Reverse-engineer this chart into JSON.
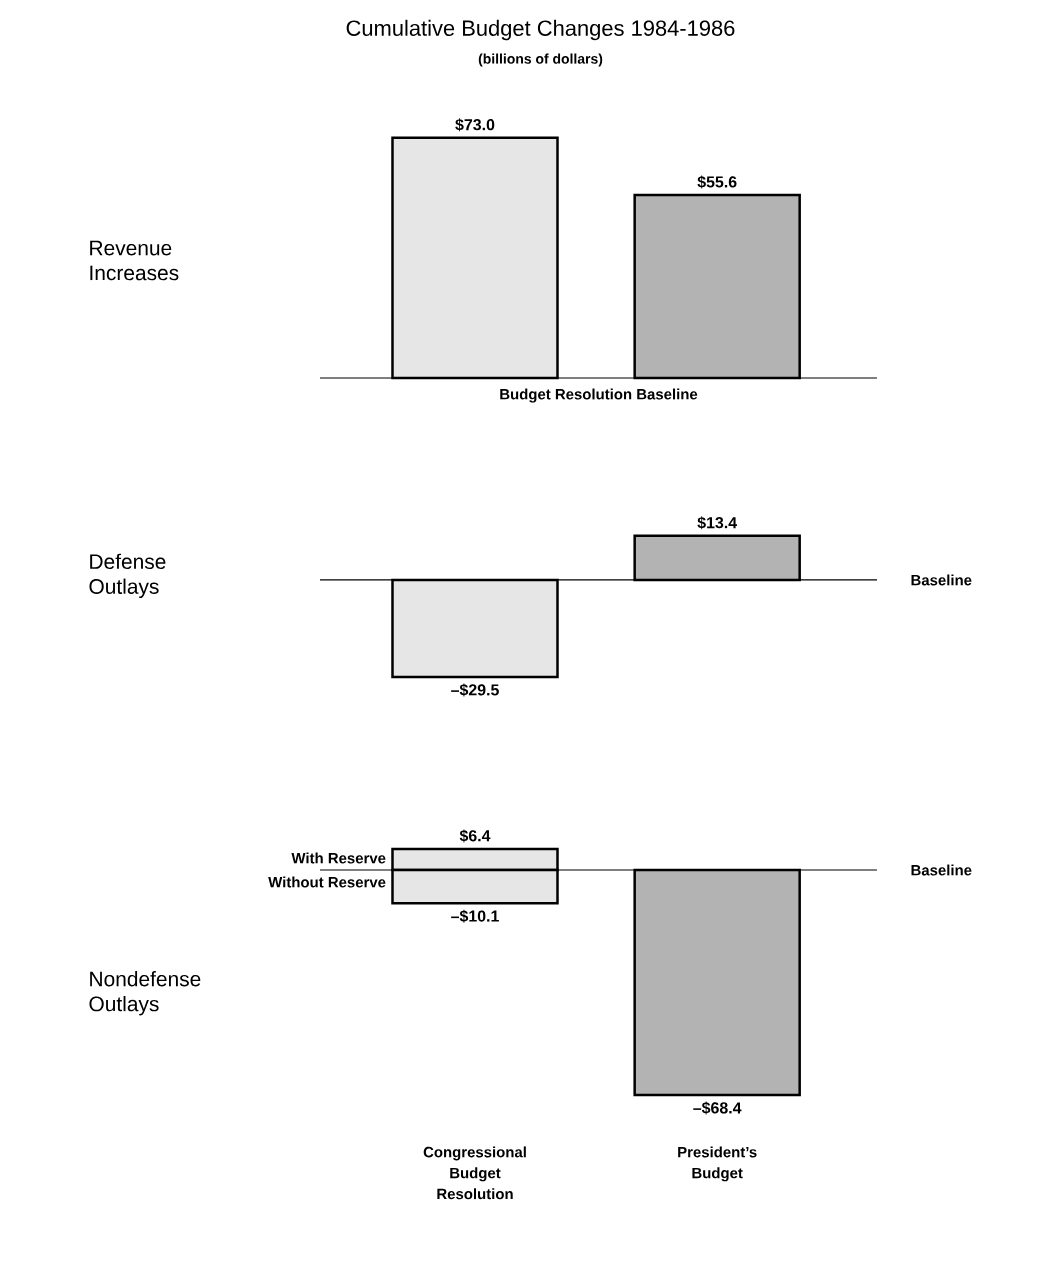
{
  "chart_data": [
    {
      "type": "bar",
      "title": "Cumulative Budget Changes 1984-1986",
      "subtitle": "(billions of dollars)",
      "ylabel": "Revenue Increases",
      "categories": [
        null,
        null
      ],
      "values": [
        73.0,
        55.6
      ],
      "colors": [
        "#e6e6e6",
        "#b3b3b3"
      ],
      "value_labels": [
        "$73.0",
        "$55.6"
      ],
      "ref_lines": [
        {
          "axis": "y",
          "value": 0,
          "label": "Budget Resolution Baseline"
        }
      ],
      "tick_labels": false
    },
    {
      "type": "bar",
      "ylabel": "Defense Outlays",
      "categories": [
        null,
        null
      ],
      "values": [
        -29.5,
        13.4
      ],
      "colors": [
        "#e6e6e6",
        "#b3b3b3"
      ],
      "value_labels": [
        "–$29.5",
        "$13.4"
      ],
      "ref_lines": [
        {
          "axis": "y",
          "value": 0,
          "label": "Baseline"
        }
      ],
      "tick_labels": false
    },
    {
      "type": "bar",
      "ylabel": "Nondefense Outlays",
      "categories": [
        "Congressional Budget Resolution",
        "President’s Budget"
      ],
      "series": [
        {
          "name": "With Reserve",
          "color": "#e6e6e6",
          "values": [
            6.4,
            null
          ],
          "value_labels": [
            "$6.4",
            null
          ]
        },
        {
          "name": "Without Reserve",
          "color": "#e6e6e6",
          "values": [
            -10.1,
            null
          ],
          "value_labels": [
            "–$10.1",
            null
          ]
        },
        {
          "color": "#b3b3b3",
          "values": [
            null,
            -68.4
          ],
          "value_labels": [
            null,
            "–$68.4"
          ]
        }
      ],
      "stacked": true,
      "ref_lines": [
        {
          "axis": "y",
          "value": 0,
          "label": "Baseline"
        }
      ],
      "tick_labels": "x"
    }
  ]
}
